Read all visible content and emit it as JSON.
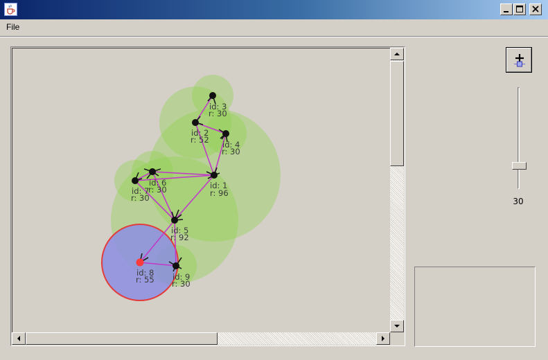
{
  "window": {
    "icon": "java-coffee-icon",
    "controls": [
      "minimize-icon",
      "maximize-icon",
      "close-icon"
    ]
  },
  "menu": {
    "file_label": "File"
  },
  "toolbar": {
    "add_node_icon": "plus-node-icon"
  },
  "slider": {
    "value": "30",
    "level": 30
  },
  "colors": {
    "background": "#d4d0c8",
    "range_green": "#8fd24a",
    "link": "#c03cc8",
    "node": "#111111",
    "selected_node": "#ff3b3b",
    "selected_range_fill": "#8c8ee0",
    "selected_range_stroke": "#e33c3c"
  },
  "graph": {
    "nodes": [
      {
        "id_label": "id: 1",
        "r_label": "r: 96"
      },
      {
        "id_label": "id: 2",
        "r_label": "r: 52"
      },
      {
        "id_label": "id: 3",
        "r_label": "r: 30"
      },
      {
        "id_label": "id: 4",
        "r_label": "r: 30"
      },
      {
        "id_label": "id: 5",
        "r_label": "r: 92"
      },
      {
        "id_label": "id: 6",
        "r_label": "r: 30"
      },
      {
        "id_label": "id: 7",
        "r_label": "r: 30"
      },
      {
        "id_label": "id: 8",
        "r_label": "r: 55"
      },
      {
        "id_label": "id: 9",
        "r_label": "r: 30"
      }
    ]
  }
}
